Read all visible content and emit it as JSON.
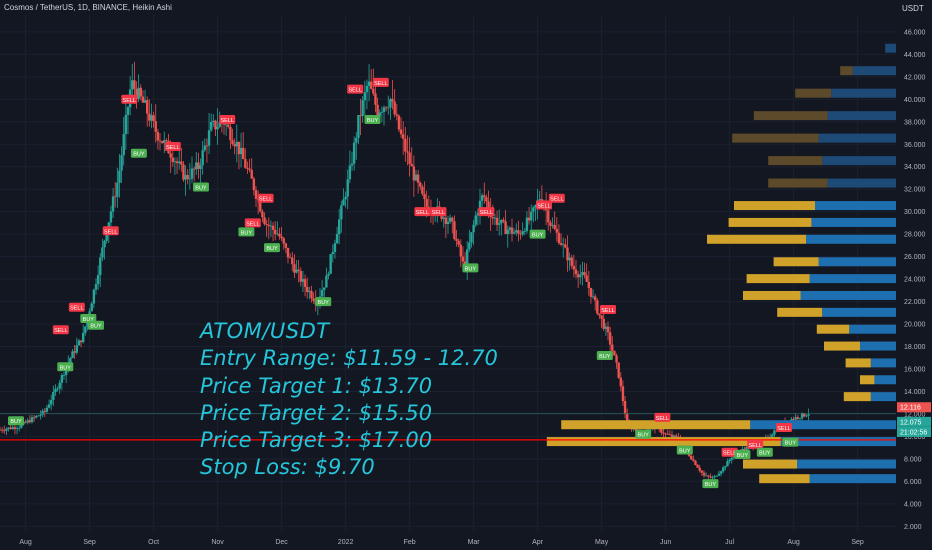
{
  "header": {
    "title": "Cosmos / TetherUS, 1D, BINANCE, Heikin Ashi",
    "unit": "USDT"
  },
  "overlay_text": [
    "ATOM/USDT",
    "Entry Range: $11.59 - 12.70",
    "Price Target 1: $13.70",
    "Price Target 2: $15.50",
    "Price Target 3: $17.00",
    "Stop Loss: $9.70"
  ],
  "colors": {
    "bull": "#26a69a",
    "bear": "#ef5350",
    "support_line": "#ff0000",
    "overlay_text": "#26c6da",
    "vp_up": "#1e6fb0",
    "vp_down": "#d1a229",
    "vp_up_dim": "#1e4a78",
    "vp_down_dim": "#5c4a2a"
  },
  "chart_data": {
    "type": "candlestick",
    "title": "Cosmos / TetherUS, 1D, BINANCE, Heikin Ashi",
    "symbol": "ATOMUSDT",
    "interval": "1D",
    "style": "Heikin Ashi",
    "y_unit": "USDT",
    "y_ticks": [
      2,
      4,
      6,
      8,
      10,
      12,
      14,
      16,
      18,
      20,
      22,
      24,
      26,
      28,
      30,
      32,
      34,
      36,
      38,
      40,
      42,
      44,
      46
    ],
    "ylim": [
      1.5,
      47.5
    ],
    "x_ticks": [
      "Aug",
      "Sep",
      "Oct",
      "Nov",
      "Dec",
      "2022",
      "Feb",
      "Mar",
      "Apr",
      "May",
      "Jun",
      "Jul",
      "Aug",
      "Sep"
    ],
    "x_tick_months": [
      0,
      1,
      2,
      3,
      4,
      5,
      6,
      7,
      8,
      9,
      10,
      11,
      12,
      13
    ],
    "xlim_months": [
      -0.4,
      13.6
    ],
    "price_path": [
      [
        -0.4,
        10.6
      ],
      [
        -0.1,
        10.9
      ],
      [
        0.3,
        12.2
      ],
      [
        0.5,
        14.5
      ],
      [
        0.7,
        17.0
      ],
      [
        0.9,
        19.0
      ],
      [
        1.05,
        22.5
      ],
      [
        1.25,
        28.0
      ],
      [
        1.45,
        33.0
      ],
      [
        1.65,
        41.5
      ],
      [
        1.85,
        39.5
      ],
      [
        2.05,
        37.0
      ],
      [
        2.3,
        35.0
      ],
      [
        2.5,
        33.0
      ],
      [
        2.7,
        34.0
      ],
      [
        2.9,
        37.5
      ],
      [
        3.1,
        38.0
      ],
      [
        3.3,
        36.0
      ],
      [
        3.55,
        32.5
      ],
      [
        3.75,
        29.0
      ],
      [
        3.95,
        28.0
      ],
      [
        4.15,
        25.5
      ],
      [
        4.35,
        23.5
      ],
      [
        4.55,
        22.0
      ],
      [
        4.7,
        24.0
      ],
      [
        4.85,
        28.0
      ],
      [
        5.05,
        33.0
      ],
      [
        5.2,
        38.0
      ],
      [
        5.35,
        41.5
      ],
      [
        5.5,
        39.0
      ],
      [
        5.7,
        40.0
      ],
      [
        5.85,
        37.0
      ],
      [
        6.05,
        33.5
      ],
      [
        6.25,
        30.5
      ],
      [
        6.45,
        30.0
      ],
      [
        6.65,
        29.0
      ],
      [
        6.85,
        25.0
      ],
      [
        7.05,
        30.0
      ],
      [
        7.15,
        31.5
      ],
      [
        7.3,
        29.5
      ],
      [
        7.5,
        28.5
      ],
      [
        7.7,
        28.0
      ],
      [
        7.9,
        29.5
      ],
      [
        8.05,
        31.5
      ],
      [
        8.2,
        29.0
      ],
      [
        8.35,
        27.5
      ],
      [
        8.55,
        25.0
      ],
      [
        8.75,
        24.0
      ],
      [
        8.95,
        21.0
      ],
      [
        9.1,
        19.0
      ],
      [
        9.25,
        16.0
      ],
      [
        9.4,
        11.0
      ],
      [
        9.6,
        10.4
      ],
      [
        9.8,
        11.0
      ],
      [
        10.0,
        10.2
      ],
      [
        10.2,
        9.8
      ],
      [
        10.35,
        8.5
      ],
      [
        10.5,
        7.3
      ],
      [
        10.6,
        6.5
      ],
      [
        10.75,
        6.3
      ],
      [
        10.9,
        7.2
      ],
      [
        11.05,
        8.3
      ],
      [
        11.2,
        8.8
      ],
      [
        11.4,
        9.3
      ],
      [
        11.55,
        9.6
      ],
      [
        11.75,
        10.8
      ],
      [
        11.95,
        11.5
      ],
      [
        12.1,
        11.8
      ],
      [
        12.25,
        12.1
      ]
    ],
    "signals": [
      {
        "label": "BUY",
        "month": -0.15,
        "price": 11.4
      },
      {
        "label": "BUY",
        "month": 0.62,
        "price": 16.2
      },
      {
        "label": "SELL",
        "month": 0.55,
        "price": 19.5
      },
      {
        "label": "SELL",
        "month": 0.8,
        "price": 21.5
      },
      {
        "label": "BUY",
        "month": 0.98,
        "price": 20.5
      },
      {
        "label": "BUY",
        "month": 1.1,
        "price": 19.9
      },
      {
        "label": "SELL",
        "month": 1.33,
        "price": 28.3
      },
      {
        "label": "BUY",
        "month": 1.77,
        "price": 35.2
      },
      {
        "label": "SELL",
        "month": 1.62,
        "price": 40.0
      },
      {
        "label": "SELL",
        "month": 2.3,
        "price": 35.8
      },
      {
        "label": "BUY",
        "month": 2.74,
        "price": 32.2
      },
      {
        "label": "SELL",
        "month": 3.15,
        "price": 38.2
      },
      {
        "label": "SELL",
        "month": 3.75,
        "price": 31.2
      },
      {
        "label": "SELL",
        "month": 3.55,
        "price": 29.0
      },
      {
        "label": "BUY",
        "month": 3.45,
        "price": 28.2
      },
      {
        "label": "BUY",
        "month": 3.85,
        "price": 26.8
      },
      {
        "label": "BUY",
        "month": 4.65,
        "price": 22.0
      },
      {
        "label": "SELL",
        "month": 5.15,
        "price": 40.9
      },
      {
        "label": "SELL",
        "month": 5.55,
        "price": 41.5
      },
      {
        "label": "BUY",
        "month": 5.42,
        "price": 38.2
      },
      {
        "label": "SELL",
        "month": 6.2,
        "price": 30.0
      },
      {
        "label": "SELL",
        "month": 6.45,
        "price": 30.0
      },
      {
        "label": "BUY",
        "month": 6.95,
        "price": 25.0
      },
      {
        "label": "SELL",
        "month": 7.2,
        "price": 30.0
      },
      {
        "label": "BUY",
        "month": 8.0,
        "price": 28.0
      },
      {
        "label": "SELL",
        "month": 8.1,
        "price": 30.6
      },
      {
        "label": "SELL",
        "month": 8.3,
        "price": 31.2
      },
      {
        "label": "SELL",
        "month": 9.1,
        "price": 21.3
      },
      {
        "label": "BUY",
        "month": 9.05,
        "price": 17.2
      },
      {
        "label": "BUY",
        "month": 9.65,
        "price": 10.2
      },
      {
        "label": "SELL",
        "month": 9.95,
        "price": 11.7
      },
      {
        "label": "BUY",
        "month": 10.3,
        "price": 8.8
      },
      {
        "label": "BUY",
        "month": 10.7,
        "price": 5.8
      },
      {
        "label": "SELL",
        "month": 11.0,
        "price": 8.6
      },
      {
        "label": "SELL",
        "month": 11.4,
        "price": 9.3
      },
      {
        "label": "BUY",
        "month": 11.2,
        "price": 8.4
      },
      {
        "label": "SELL",
        "month": 11.85,
        "price": 10.8
      },
      {
        "label": "BUY",
        "month": 11.55,
        "price": 8.6
      },
      {
        "label": "BUY",
        "month": 11.95,
        "price": 9.5
      }
    ],
    "support_line": 9.7,
    "horizontal_line": 12.05,
    "volume_profile": [
      {
        "price": 44.5,
        "up": 0.06,
        "down": 0.0
      },
      {
        "price": 42.5,
        "up": 0.24,
        "down": 0.07
      },
      {
        "price": 40.5,
        "up": 0.36,
        "down": 0.2
      },
      {
        "price": 38.5,
        "up": 0.38,
        "down": 0.41
      },
      {
        "price": 36.5,
        "up": 0.43,
        "down": 0.48
      },
      {
        "price": 34.5,
        "up": 0.41,
        "down": 0.3
      },
      {
        "price": 32.5,
        "up": 0.38,
        "down": 0.33
      },
      {
        "price": 30.5,
        "up": 0.45,
        "down": 0.45
      },
      {
        "price": 29.0,
        "up": 0.47,
        "down": 0.46
      },
      {
        "price": 27.5,
        "up": 0.5,
        "down": 0.55
      },
      {
        "price": 25.5,
        "up": 0.43,
        "down": 0.25
      },
      {
        "price": 24.0,
        "up": 0.48,
        "down": 0.35
      },
      {
        "price": 22.5,
        "up": 0.53,
        "down": 0.32
      },
      {
        "price": 21.0,
        "up": 0.41,
        "down": 0.25
      },
      {
        "price": 19.5,
        "up": 0.26,
        "down": 0.18
      },
      {
        "price": 18.0,
        "up": 0.2,
        "down": 0.2
      },
      {
        "price": 16.5,
        "up": 0.14,
        "down": 0.14
      },
      {
        "price": 15.0,
        "up": 0.12,
        "down": 0.08
      },
      {
        "price": 13.5,
        "up": 0.14,
        "down": 0.15
      },
      {
        "price": 11.0,
        "up": 0.81,
        "down": 1.05
      },
      {
        "price": 9.5,
        "up": 0.64,
        "down": 1.3
      },
      {
        "price": 7.5,
        "up": 0.55,
        "down": 0.3
      },
      {
        "price": 6.2,
        "up": 0.48,
        "down": 0.28
      }
    ],
    "price_labels": [
      {
        "value": "12.116",
        "price": 12.6,
        "color": "#ef5350"
      },
      {
        "value": "12.075",
        "price": 11.3,
        "color": "#26a69a"
      },
      {
        "value": "21:02:56",
        "price": 10.4,
        "color": "#26a69a"
      }
    ]
  }
}
